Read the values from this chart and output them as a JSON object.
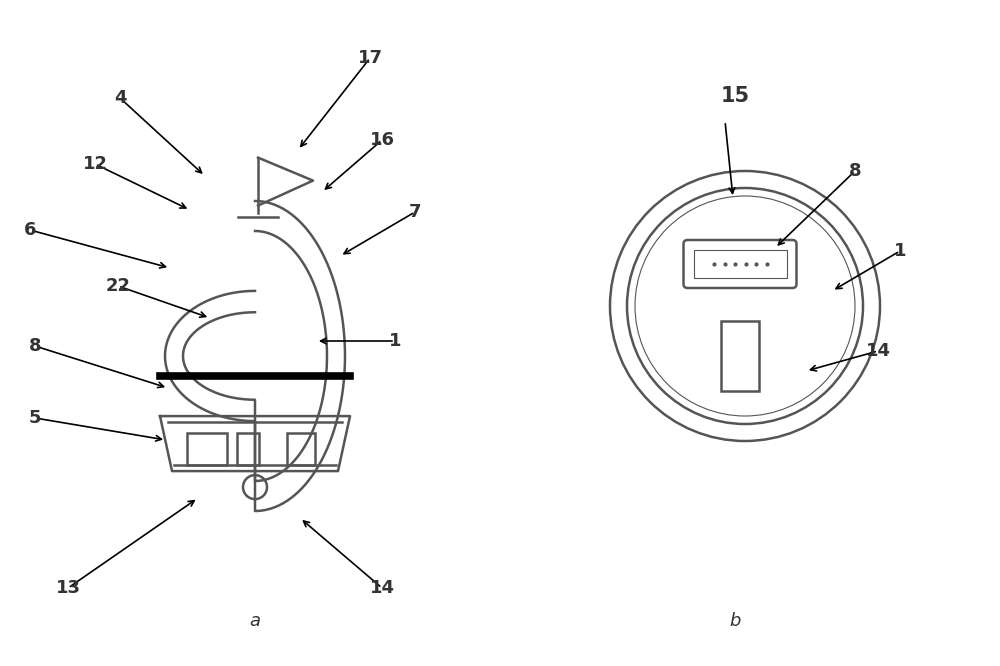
{
  "bg_color": "#ffffff",
  "line_color": "#555555",
  "dark_color": "#333333",
  "fig_width": 10.0,
  "fig_height": 6.66,
  "dpi": 100
}
